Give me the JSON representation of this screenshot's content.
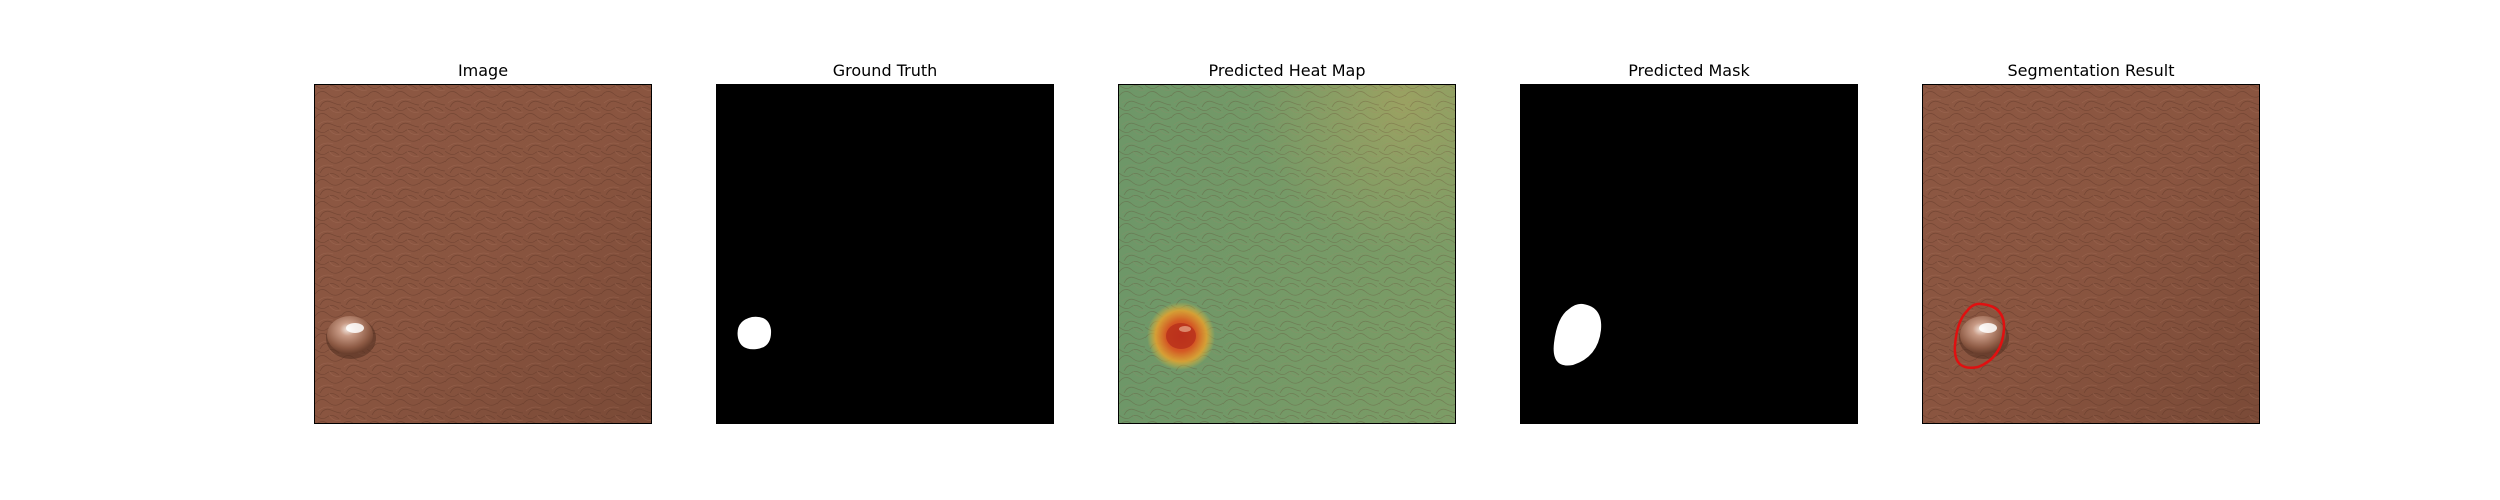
{
  "figure": {
    "panels": [
      {
        "id": "image",
        "title": "Image"
      },
      {
        "id": "ground-truth",
        "title": "Ground Truth"
      },
      {
        "id": "heat-map",
        "title": "Predicted Heat Map"
      },
      {
        "id": "predicted-mask",
        "title": "Predicted Mask"
      },
      {
        "id": "segmentation",
        "title": "Segmentation Result"
      }
    ]
  },
  "colors": {
    "leather": "#8a5540",
    "heat_map_background": "#6f9a6a",
    "mask_background": "#000000",
    "mask_foreground": "#ffffff",
    "contour": "#e01010"
  }
}
